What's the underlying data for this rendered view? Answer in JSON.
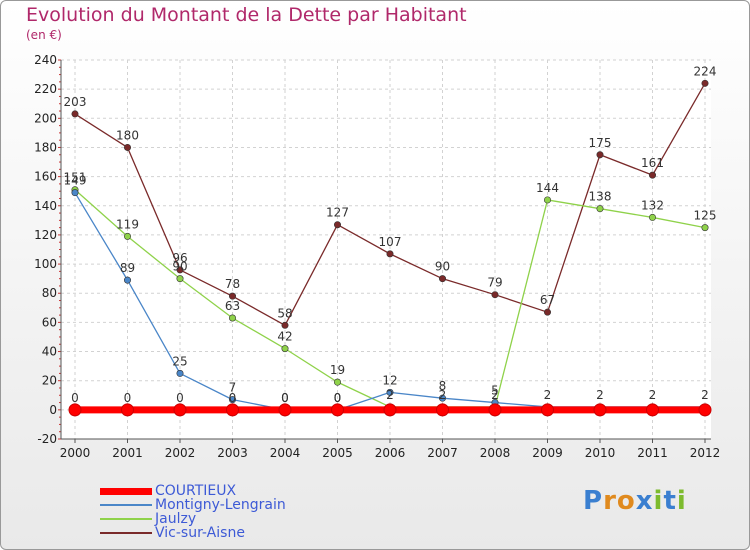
{
  "header": {
    "title": "Evolution du Montant de la Dette par Habitant",
    "subtitle": "(en €)"
  },
  "brand": {
    "letters": [
      "P",
      "r",
      "o",
      "x",
      "i",
      "t",
      "i"
    ]
  },
  "chart_data": {
    "type": "line",
    "title": "Evolution du Montant de la Dette par Habitant",
    "subtitle": "(en €)",
    "xlabel": "",
    "ylabel": "",
    "x": [
      "2000",
      "2001",
      "2002",
      "2003",
      "2004",
      "2005",
      "2006",
      "2007",
      "2008",
      "2009",
      "2010",
      "2011",
      "2012"
    ],
    "ylim": [
      -20,
      240
    ],
    "yticks": [
      -20,
      0,
      20,
      40,
      60,
      80,
      100,
      120,
      140,
      160,
      180,
      200,
      220,
      240
    ],
    "grid": true,
    "legend_position": "bottom-left",
    "series": [
      {
        "name": "COURTIEUX",
        "color": "#ff0000",
        "values": [
          0,
          0,
          0,
          0,
          0,
          0,
          0,
          0,
          0,
          0,
          0,
          0,
          0
        ],
        "labels": [
          "0",
          "0",
          "0",
          "0",
          "0",
          "0",
          "0",
          "0",
          "0",
          "0",
          "0",
          "0",
          "0"
        ],
        "show_labels": [
          true,
          true,
          true,
          true,
          true,
          true,
          false,
          false,
          false,
          false,
          false,
          false,
          false
        ]
      },
      {
        "name": "Montigny-Lengrain",
        "color": "#4a86c8",
        "values": [
          149,
          89,
          25,
          7,
          0,
          0,
          12,
          8,
          5,
          2,
          2,
          2,
          2
        ],
        "labels": [
          "149",
          "89",
          "25",
          "7",
          "0",
          "0",
          "12",
          "8",
          "5",
          "2",
          "2",
          "2",
          "2"
        ],
        "show_labels": [
          true,
          true,
          true,
          true,
          true,
          true,
          true,
          true,
          true,
          true,
          true,
          true,
          true
        ]
      },
      {
        "name": "Jaulzy",
        "color": "#8fd24a",
        "values": [
          151,
          119,
          90,
          63,
          42,
          19,
          2,
          2,
          2,
          144,
          138,
          132,
          125
        ],
        "labels": [
          "151",
          "119",
          "90",
          "63",
          "42",
          "19",
          "2",
          "2",
          "2",
          "144",
          "138",
          "132",
          "125"
        ],
        "show_labels": [
          true,
          true,
          true,
          true,
          true,
          true,
          true,
          true,
          true,
          true,
          true,
          true,
          true
        ]
      },
      {
        "name": "Vic-sur-Aisne",
        "color": "#7a2a2a",
        "values": [
          203,
          180,
          96,
          78,
          58,
          127,
          107,
          90,
          79,
          67,
          175,
          161,
          224
        ],
        "labels": [
          "203",
          "180",
          "96",
          "78",
          "58",
          "127",
          "107",
          "90",
          "79",
          "67",
          "175",
          "161",
          "224"
        ],
        "show_labels": [
          true,
          true,
          true,
          true,
          true,
          true,
          true,
          true,
          true,
          true,
          true,
          true,
          true
        ]
      }
    ]
  }
}
